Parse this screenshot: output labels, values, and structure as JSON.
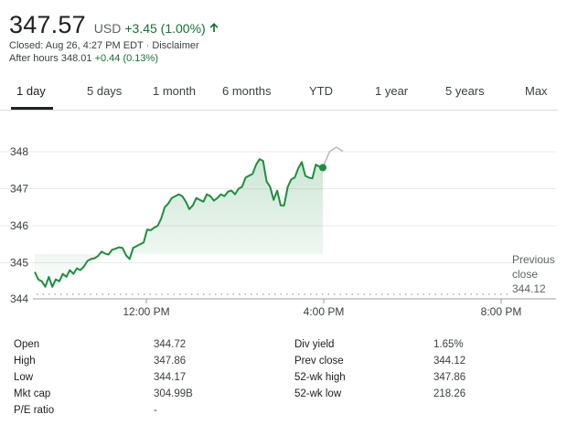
{
  "quote": {
    "price": "347.57",
    "currency": "USD",
    "change": "+3.45 (1.00%)",
    "closed_text": "Closed: Aug 26, 4:27 PM EDT",
    "separator": "·",
    "disclaimer": "Disclaimer",
    "after_hours_label": "After hours 348.01",
    "after_hours_change": "+0.44 (0.13%)"
  },
  "tabs": [
    {
      "label": "1 day"
    },
    {
      "label": "5 days"
    },
    {
      "label": "1 month"
    },
    {
      "label": "6 months"
    },
    {
      "label": "YTD"
    },
    {
      "label": "1 year"
    },
    {
      "label": "5 years"
    },
    {
      "label": "Max"
    }
  ],
  "chart_data": {
    "type": "line",
    "x_labels": [
      "12:00 PM",
      "4:00 PM",
      "8:00 PM"
    ],
    "y_ticks": [
      "348",
      "347",
      "346",
      "345",
      "344"
    ],
    "ylim": [
      344,
      348.4
    ],
    "previous_close": {
      "line1": "Previous",
      "line2": "close",
      "value": "344.12"
    },
    "series_color": "#1e8e3e",
    "after_hours_color": "#bdbdbd",
    "series": [
      {
        "values": [
          344.75,
          344.55,
          344.5,
          344.35,
          344.62,
          344.35,
          344.55,
          344.5,
          344.7,
          344.62,
          344.8,
          344.7,
          344.85,
          344.8,
          344.9,
          345.05,
          345.1,
          345.12,
          345.18,
          345.3,
          345.25,
          345.22,
          345.35,
          345.38,
          345.42,
          345.4,
          345.2,
          345.1,
          345.4,
          345.45,
          345.5,
          345.55,
          345.9,
          345.88,
          345.95,
          346.0,
          346.2,
          346.5,
          346.6,
          346.75,
          346.8,
          346.85,
          346.8,
          346.65,
          346.45,
          346.55,
          346.75,
          346.7,
          346.65,
          346.85,
          346.8,
          346.68,
          346.75,
          346.85,
          346.8,
          346.92,
          346.95,
          346.85,
          347.0,
          347.05,
          347.3,
          347.35,
          347.4,
          347.65,
          347.8,
          347.75,
          347.2,
          347.05,
          346.7,
          346.95,
          346.55,
          346.55,
          347.05,
          347.25,
          347.3,
          347.55,
          347.72,
          347.35,
          347.3,
          347.28,
          347.65,
          347.6,
          347.57
        ]
      },
      {
        "values": [
          347.57,
          348.0,
          348.12,
          348.01
        ]
      }
    ]
  },
  "stats_left": [
    {
      "label": "Open",
      "value": "344.72"
    },
    {
      "label": "High",
      "value": "347.86"
    },
    {
      "label": "Low",
      "value": "344.17"
    },
    {
      "label": "Mkt cap",
      "value": "304.99B"
    },
    {
      "label": "P/E ratio",
      "value": "-"
    }
  ],
  "stats_right": [
    {
      "label": "Div yield",
      "value": "1.65%"
    },
    {
      "label": "Prev close",
      "value": "344.12"
    },
    {
      "label": "52-wk high",
      "value": "347.86"
    },
    {
      "label": "52-wk low",
      "value": "218.26"
    }
  ]
}
